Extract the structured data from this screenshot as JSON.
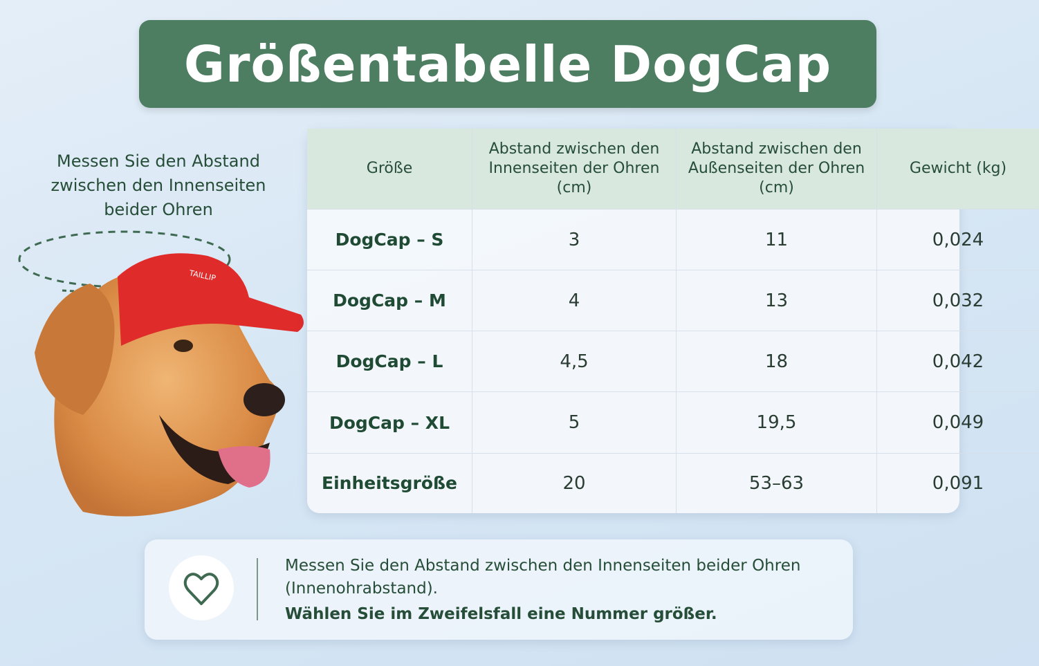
{
  "header": {
    "title": "Größentabelle DogCap"
  },
  "instruction": "Messen Sie den Abstand zwischen den Innenseiten beider Ohren",
  "dog": {
    "cap_label": "TAILLIP"
  },
  "table": {
    "columns": [
      "Größe",
      "Abstand zwischen den Innenseiten der Ohren (cm)",
      "Abstand zwischen den Außenseiten der Ohren (cm)",
      "Gewicht (kg)"
    ],
    "rows": [
      [
        "DogCap – S",
        "3",
        "11",
        "0,024"
      ],
      [
        "DogCap – M",
        "4",
        "13",
        "0,032"
      ],
      [
        "DogCap – L",
        "4,5",
        "18",
        "0,042"
      ],
      [
        "DogCap – XL",
        "5",
        "19,5",
        "0,049"
      ],
      [
        "Einheitsgröße",
        "20",
        "53–63",
        "0,091"
      ]
    ]
  },
  "note": {
    "line1": "Messen Sie den Abstand zwischen den Innenseiten beider Ohren (Innenohrabstand).",
    "line2": "Wählen Sie im Zweifelsfall eine Nummer größer."
  }
}
